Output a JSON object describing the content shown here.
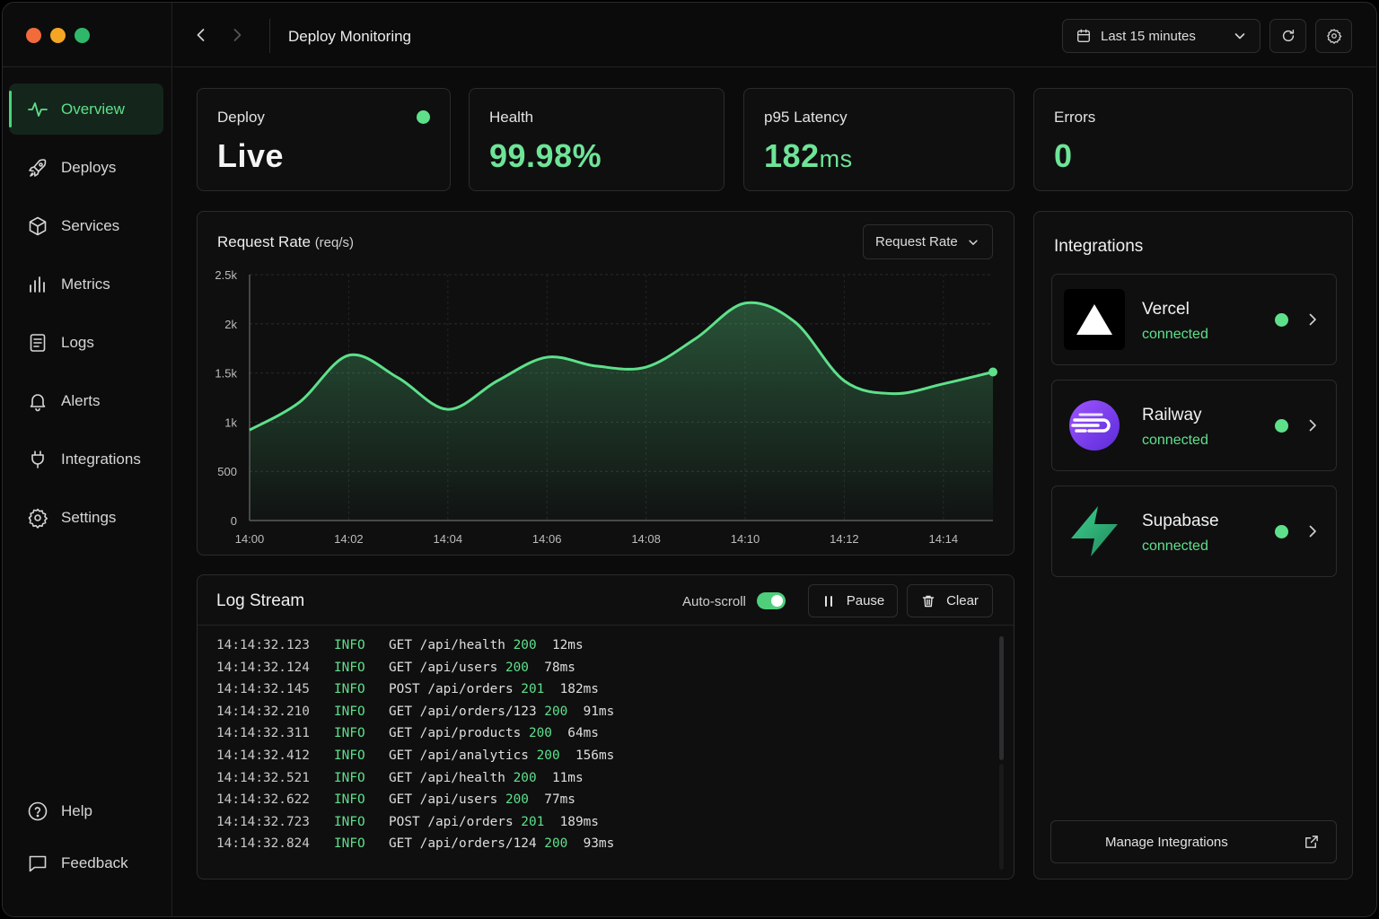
{
  "topbar": {
    "title": "Deploy Monitoring",
    "time_range": "Last 15 minutes"
  },
  "sidebar": {
    "items": [
      {
        "label": "Overview",
        "icon": "activity-icon",
        "active": true
      },
      {
        "label": "Deploys",
        "icon": "rocket-icon"
      },
      {
        "label": "Services",
        "icon": "cube-icon"
      },
      {
        "label": "Metrics",
        "icon": "bar-chart-icon"
      },
      {
        "label": "Logs",
        "icon": "document-icon"
      },
      {
        "label": "Alerts",
        "icon": "bell-icon"
      },
      {
        "label": "Integrations",
        "icon": "plug-icon"
      },
      {
        "label": "Settings",
        "icon": "gear-icon"
      }
    ],
    "bottom": [
      {
        "label": "Help",
        "icon": "help-circle-icon"
      },
      {
        "label": "Feedback",
        "icon": "message-square-icon"
      }
    ]
  },
  "stats": {
    "deploy": {
      "label": "Deploy",
      "value": "Live"
    },
    "health": {
      "label": "Health",
      "value": "99.98%"
    },
    "latency": {
      "label": "p95 Latency",
      "value": "182",
      "unit": "ms"
    },
    "errors": {
      "label": "Errors",
      "value": "0"
    }
  },
  "chart": {
    "title": "Request Rate",
    "unit": "(req/s)",
    "selector": "Request Rate"
  },
  "chart_data": {
    "type": "area",
    "x": [
      "14:00",
      "14:01",
      "14:02",
      "14:03",
      "14:04",
      "14:05",
      "14:06",
      "14:07",
      "14:08",
      "14:09",
      "14:10",
      "14:11",
      "14:12",
      "14:13",
      "14:14",
      "14:15"
    ],
    "y": [
      920,
      1200,
      1680,
      1450,
      1130,
      1420,
      1660,
      1570,
      1560,
      1850,
      2210,
      2020,
      1420,
      1290,
      1390,
      1510
    ],
    "xticks": [
      "14:00",
      "14:02",
      "14:04",
      "14:06",
      "14:08",
      "14:10",
      "14:12",
      "14:14"
    ],
    "yticks": [
      "0",
      "500",
      "1k",
      "1.5k",
      "2k",
      "2.5k"
    ],
    "ylim": [
      0,
      2500
    ],
    "grid": true,
    "color": "#5ee08a"
  },
  "logs": {
    "title": "Log Stream",
    "autoscroll_label": "Auto-scroll",
    "autoscroll_on": true,
    "pause_label": "Pause",
    "clear_label": "Clear",
    "rows": [
      {
        "ts": "14:14:32.123",
        "level": "INFO",
        "method": "GET",
        "path": "/api/health",
        "code": "200",
        "dur": "12ms"
      },
      {
        "ts": "14:14:32.124",
        "level": "INFO",
        "method": "GET",
        "path": "/api/users",
        "code": "200",
        "dur": "78ms"
      },
      {
        "ts": "14:14:32.145",
        "level": "INFO",
        "method": "POST",
        "path": "/api/orders",
        "code": "201",
        "dur": "182ms"
      },
      {
        "ts": "14:14:32.210",
        "level": "INFO",
        "method": "GET",
        "path": "/api/orders/123",
        "code": "200",
        "dur": "91ms"
      },
      {
        "ts": "14:14:32.311",
        "level": "INFO",
        "method": "GET",
        "path": "/api/products",
        "code": "200",
        "dur": "64ms"
      },
      {
        "ts": "14:14:32.412",
        "level": "INFO",
        "method": "GET",
        "path": "/api/analytics",
        "code": "200",
        "dur": "156ms"
      },
      {
        "ts": "14:14:32.521",
        "level": "INFO",
        "method": "GET",
        "path": "/api/health",
        "code": "200",
        "dur": "11ms"
      },
      {
        "ts": "14:14:32.622",
        "level": "INFO",
        "method": "GET",
        "path": "/api/users",
        "code": "200",
        "dur": "77ms"
      },
      {
        "ts": "14:14:32.723",
        "level": "INFO",
        "method": "POST",
        "path": "/api/orders",
        "code": "201",
        "dur": "189ms"
      },
      {
        "ts": "14:14:32.824",
        "level": "INFO",
        "method": "GET",
        "path": "/api/orders/124",
        "code": "200",
        "dur": "93ms"
      }
    ]
  },
  "integrations": {
    "title": "Integrations",
    "items": [
      {
        "name": "Vercel",
        "status": "connected",
        "logo": "vercel-logo"
      },
      {
        "name": "Railway",
        "status": "connected",
        "logo": "railway-logo"
      },
      {
        "name": "Supabase",
        "status": "connected",
        "logo": "supabase-logo"
      }
    ],
    "manage_label": "Manage Integrations"
  },
  "colors": {
    "accent": "#5ee08a",
    "background": "#0b0b0c",
    "card": "#0f0f10",
    "border": "#2b2b2d"
  }
}
